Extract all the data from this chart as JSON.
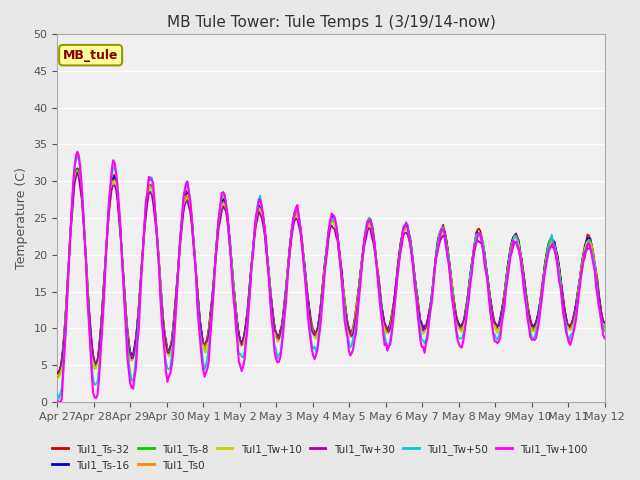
{
  "title": "MB Tule Tower: Tule Temps 1 (3/19/14-now)",
  "ylabel": "Temperature (C)",
  "ylim": [
    0,
    50
  ],
  "yticks": [
    0,
    5,
    10,
    15,
    20,
    25,
    30,
    35,
    40,
    45,
    50
  ],
  "xlabels": [
    "Apr 27",
    "Apr 28",
    "Apr 29",
    "Apr 30",
    "May 1",
    "May 2",
    "May 3",
    "May 4",
    "May 5",
    "May 6",
    "May 7",
    "May 8",
    "May 9",
    "May 10",
    "May 11",
    "May 12"
  ],
  "legend_label": "MB_tule",
  "series_labels": [
    "Tul1_Ts-32",
    "Tul1_Ts-16",
    "Tul1_Ts-8",
    "Tul1_Ts0",
    "Tul1_Tw+10",
    "Tul1_Tw+30",
    "Tul1_Tw+50",
    "Tul1_Tw+100"
  ],
  "series_colors": [
    "#cc0000",
    "#0000cc",
    "#00cc00",
    "#ff8800",
    "#cccc00",
    "#aa00aa",
    "#00cccc",
    "#ff00ff"
  ],
  "series_linewidths": [
    1.2,
    1.2,
    1.2,
    1.2,
    1.2,
    1.2,
    1.2,
    1.5
  ],
  "background_color": "#e8e8e8",
  "plot_bg_color": "#f0f0f0",
  "grid_color": "#ffffff",
  "num_points": 384
}
